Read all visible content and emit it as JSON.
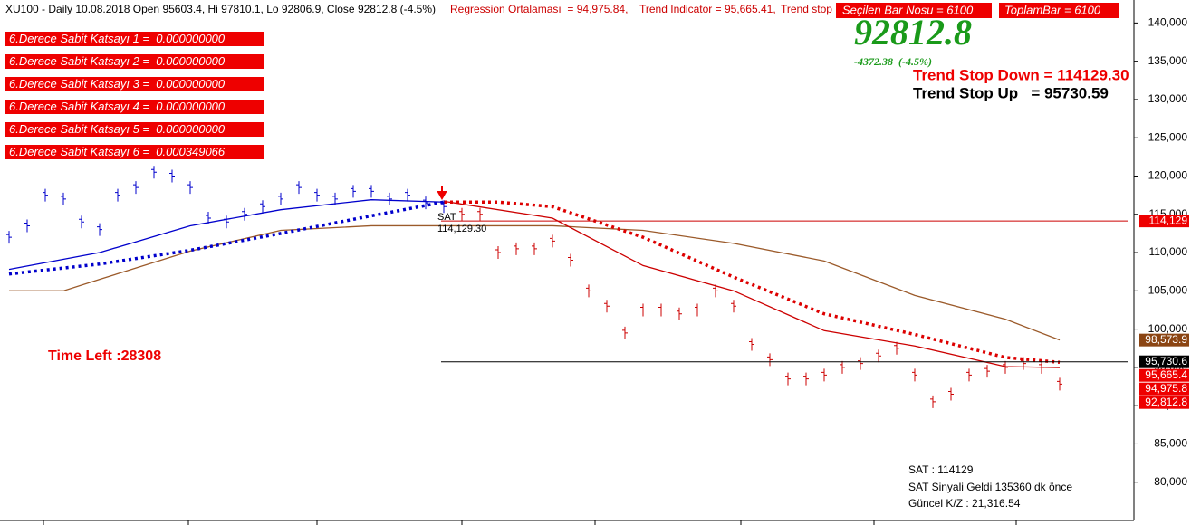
{
  "header": {
    "quote": "XU100 - Daily 10.08.2018 Open 95603.4, Hi 97810.1, Lo 92806.9, Close 92812.8 (-4.5%)",
    "regression": "Regression Ortalaması  = 94,975.84,",
    "trend_indicator": "Trend Indicator = 95,665.41,",
    "trend_stop": "Trend stop",
    "selected_bar": "Seçilen Bar Nosu = 6100",
    "total_bar": "ToplamBar = 6100"
  },
  "coefficients": [
    "6.Derece Sabit Katsayı 1 =  0.000000000",
    "6.Derece Sabit Katsayı 2 =  0.000000000",
    "6.Derece Sabit Katsayı 3 =  0.000000000",
    "6.Derece Sabit Katsayı 4 =  0.000000000",
    "6.Derece Sabit Katsayı 5 =  0.000000000",
    "6.Derece Sabit Katsayı 6 =  0.000349066"
  ],
  "last_price": "92812.8",
  "change": "-4372.38  (-4.5%)",
  "trend_stop_down": "Trend Stop Down = 114129.30",
  "trend_stop_up": "Trend Stop Up   = 95730.59",
  "time_left": "Time Left :28308",
  "info": [
    "SAT : 114129",
    "SAT Sinyali Geldi 135360 dk önce",
    "Güncel K/Z : 21,316.54"
  ],
  "chart_data": {
    "type": "line",
    "xlim": [
      0,
      58
    ],
    "ylim": [
      75000,
      143000
    ],
    "yticks": [
      {
        "value": 80000,
        "label": "80,000"
      },
      {
        "value": 85000,
        "label": "85,000"
      },
      {
        "value": 90000,
        "label": "90,000"
      },
      {
        "value": 95000,
        "label": "95,000"
      },
      {
        "value": 100000,
        "label": "100,000"
      },
      {
        "value": 105000,
        "label": "105,000"
      },
      {
        "value": 110000,
        "label": "110,000"
      },
      {
        "value": 115000,
        "label": "115,000"
      },
      {
        "value": 120000,
        "label": "120,000"
      },
      {
        "value": 125000,
        "label": "125,000"
      },
      {
        "value": 130000,
        "label": "130,000"
      },
      {
        "value": 135000,
        "label": "135,000"
      },
      {
        "value": 140000,
        "label": "140,000"
      }
    ],
    "grid": false,
    "series": [
      {
        "style": "ohlc",
        "color": "#0000cc",
        "x": [
          0,
          1,
          2,
          3,
          4,
          5,
          6,
          7,
          8,
          9,
          10,
          11,
          12,
          13,
          14,
          15,
          16,
          17,
          18,
          19,
          20,
          21,
          22,
          23,
          24
        ],
        "values": [
          112000,
          113500,
          117500,
          117000,
          114000,
          113000,
          117500,
          118500,
          120500,
          120000,
          118500,
          114500,
          114000,
          115000,
          116000,
          117000,
          118500,
          117500,
          117000,
          118000,
          118000,
          117000,
          117500,
          116500,
          116000
        ]
      },
      {
        "style": "ohlc",
        "color": "#cc0000",
        "x": [
          25,
          26,
          27,
          28,
          29,
          30,
          31,
          32,
          33,
          34,
          35,
          36,
          37,
          38,
          39,
          40,
          41,
          42,
          43,
          44,
          45,
          46,
          47,
          48,
          49,
          50,
          51,
          52,
          53,
          54,
          55,
          56,
          57,
          58
        ],
        "values": [
          115000,
          115000,
          110000,
          110500,
          110500,
          111500,
          109000,
          105000,
          103000,
          99500,
          102500,
          102500,
          102000,
          102500,
          105000,
          103000,
          98000,
          96000,
          93500,
          93500,
          94000,
          95000,
          95500,
          96500,
          97500,
          94000,
          90500,
          91500,
          94000,
          94500,
          95000,
          95500,
          95000,
          92812.8
        ]
      },
      {
        "style": "line",
        "color": "#9b5a2a",
        "x": [
          0,
          3,
          5,
          10,
          15,
          20,
          25,
          30,
          35,
          40,
          45,
          50,
          55,
          58
        ],
        "values": [
          105000,
          105000,
          106500,
          110200,
          112900,
          113500,
          113500,
          113500,
          112900,
          111200,
          108900,
          104400,
          101300,
          98573.9
        ]
      },
      {
        "style": "line",
        "color": "#0000cc",
        "x": [
          0,
          5,
          10,
          15,
          20,
          24
        ],
        "values": [
          107800,
          110000,
          113500,
          115600,
          116900,
          116600
        ]
      },
      {
        "style": "line",
        "color": "#cc0000",
        "x": [
          24,
          30,
          35,
          40,
          45,
          50,
          55,
          58
        ],
        "values": [
          116700,
          114500,
          108300,
          105000,
          99800,
          97800,
          95100,
          94975.8
        ]
      },
      {
        "style": "dotted",
        "color": "#0000cc",
        "x": [
          0,
          5,
          10,
          15,
          20,
          24
        ],
        "values": [
          107200,
          108500,
          110300,
          112500,
          114800,
          116600
        ]
      },
      {
        "style": "dotted",
        "color": "#dd0000",
        "x": [
          24,
          27,
          30,
          35,
          40,
          45,
          50,
          55,
          58
        ],
        "values": [
          116600,
          116600,
          116000,
          112000,
          106800,
          102000,
          99300,
          96300,
          95665.4
        ]
      }
    ],
    "levels": [
      {
        "value": 114129.3,
        "color": "#cc0000"
      },
      {
        "value": 95730.59,
        "color": "#000000"
      }
    ],
    "annotations": [
      "SAT",
      "114,129.30"
    ],
    "price_markers": [
      {
        "value": 114129,
        "label": "114,129",
        "color": "#ee0000"
      },
      {
        "value": 98573.9,
        "label": "98,573.9",
        "color": "#8b4513"
      },
      {
        "value": 95730.6,
        "label": "95,730.6",
        "color": "#000000"
      },
      {
        "value": 95665.4,
        "label": "95,665.4",
        "color": "#ee0000"
      },
      {
        "value": 94975.8,
        "label": "94,975.8",
        "color": "#ee0000"
      },
      {
        "value": 92812.8,
        "label": "92,812.8",
        "color": "#ee0000"
      }
    ]
  }
}
